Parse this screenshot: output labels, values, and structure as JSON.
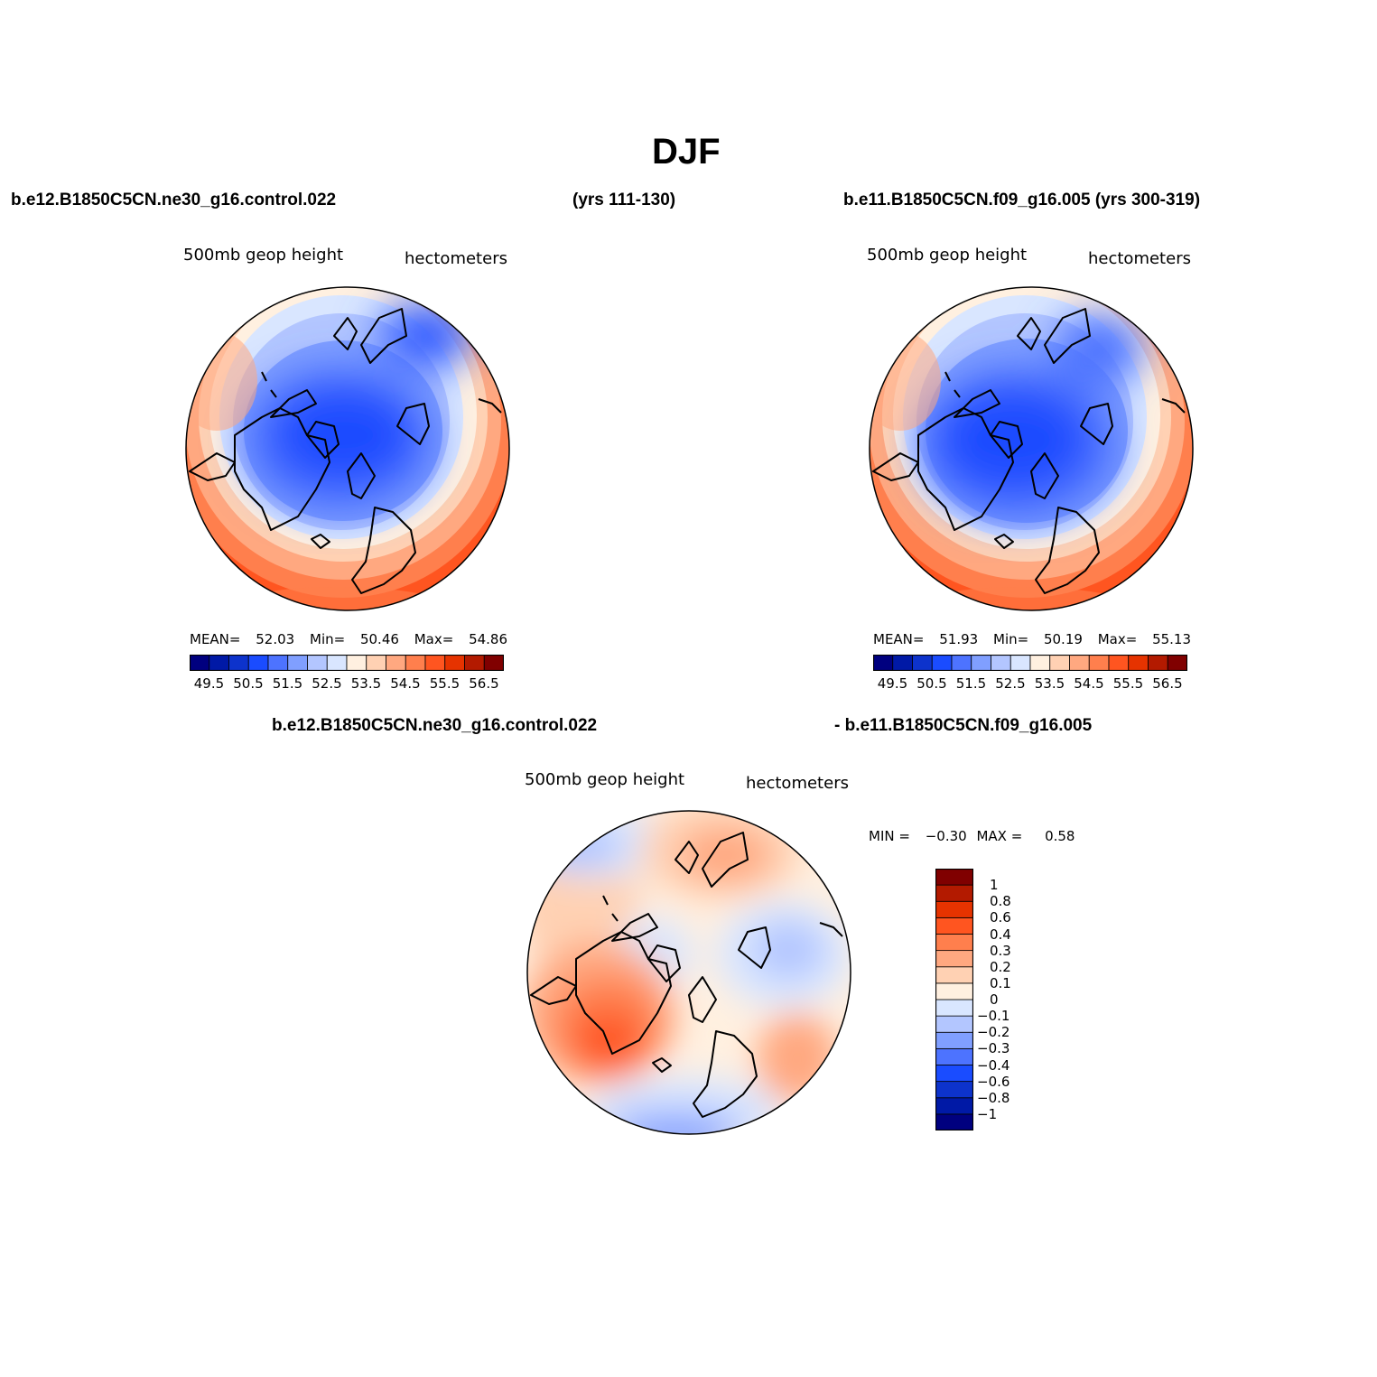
{
  "title": "DJF",
  "panels": [
    {
      "case_title_left": "b.e12.B1850C5CN.ne30_g16.control.022",
      "case_title_right": "(yrs 111-130)",
      "variable_label": "500mb  geop  height",
      "units_label": "hectometers",
      "stats": {
        "mean_label": "MEAN=",
        "mean": "52.03",
        "min_label": "Min=",
        "min": "50.46",
        "max_label": "Max=",
        "max": "54.86"
      }
    },
    {
      "case_title": "b.e11.B1850C5CN.f09_g16.005 (yrs 300-319)",
      "variable_label": "500mb  geop  height",
      "units_label": "hectometers",
      "stats": {
        "mean_label": "MEAN=",
        "mean": "51.93",
        "min_label": "Min=",
        "min": "50.19",
        "max_label": "Max=",
        "max": "55.13"
      }
    },
    {
      "case_title_left": "b.e12.B1850C5CN.ne30_g16.control.022",
      "case_title_right": "- b.e11.B1850C5CN.f09_g16.005",
      "variable_label": "500mb  geop  height",
      "units_label": "hectometers",
      "stats": {
        "min_label": "MIN =",
        "min": "−0.30",
        "max_label": "MAX =",
        "max": "0.58"
      }
    }
  ],
  "colorbar_abs": {
    "colors": [
      "#00007f",
      "#0019a6",
      "#0d33cc",
      "#1a4cff",
      "#4d73ff",
      "#809fff",
      "#b3c6ff",
      "#d9e6ff",
      "#fff0e0",
      "#ffd1b3",
      "#ffa880",
      "#ff7f4d",
      "#ff5520",
      "#e63300",
      "#b31a00",
      "#800000"
    ],
    "labels": [
      "49.5",
      "50.5",
      "51.5",
      "52.5",
      "53.5",
      "54.5",
      "55.5",
      "56.5"
    ]
  },
  "colorbar_diff": {
    "colors": [
      "#00007f",
      "#0019a6",
      "#0d33cc",
      "#1a4cff",
      "#4d73ff",
      "#809fff",
      "#b3c6ff",
      "#d9e6ff",
      "#fff0e0",
      "#ffd1b3",
      "#ffa880",
      "#ff7f4d",
      "#ff5520",
      "#e63300",
      "#b31a00",
      "#800000"
    ],
    "labels": [
      "−1",
      "−0.8",
      "−0.6",
      "−0.4",
      "−0.3",
      "−0.2",
      "−0.1",
      "0",
      "0.1",
      "0.2",
      "0.3",
      "0.4",
      "0.6",
      "0.8",
      "1"
    ]
  },
  "map_colors": {
    "deep": "#1a4cff",
    "mid": "#4d73ff",
    "light": "#809fff",
    "pale": "#b3c6ff",
    "faint": "#d9e6ff",
    "cream": "#fff0e0",
    "peach": "#ffd1b3",
    "salmon": "#ffa880",
    "orange": "#ff7f4d",
    "red": "#ff5520",
    "coast": "#000000"
  }
}
